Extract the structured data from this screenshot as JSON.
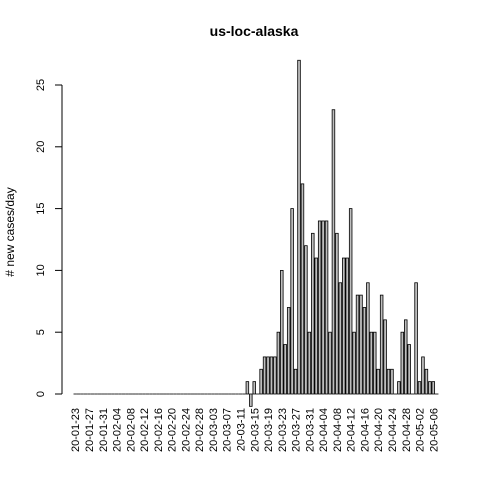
{
  "chart_data": {
    "type": "bar",
    "title": "us-loc-alaska",
    "xlabel": "",
    "ylabel": "# new cases/day",
    "ylim": [
      0,
      27
    ],
    "y_ticks": [
      0,
      5,
      10,
      15,
      20,
      25
    ],
    "grid": false,
    "legend": "none",
    "bar_fill": "#bebebe",
    "bar_stroke": "#000000",
    "x_tick_labels": [
      "20-01-23",
      "20-01-27",
      "20-01-31",
      "20-02-04",
      "20-02-08",
      "20-02-12",
      "20-02-16",
      "20-02-20",
      "20-02-24",
      "20-02-28",
      "20-03-03",
      "20-03-07",
      "20-03-11",
      "20-03-15",
      "20-03-19",
      "20-03-23",
      "20-03-27",
      "20-03-31",
      "20-04-04",
      "20-04-08",
      "20-04-12",
      "20-04-16",
      "20-04-20",
      "20-04-24",
      "20-04-28",
      "20-05-02",
      "20-05-06"
    ],
    "categories": [
      "20-01-23",
      "20-01-24",
      "20-01-25",
      "20-01-26",
      "20-01-27",
      "20-01-28",
      "20-01-29",
      "20-01-30",
      "20-01-31",
      "20-02-01",
      "20-02-02",
      "20-02-03",
      "20-02-04",
      "20-02-05",
      "20-02-06",
      "20-02-07",
      "20-02-08",
      "20-02-09",
      "20-02-10",
      "20-02-11",
      "20-02-12",
      "20-02-13",
      "20-02-14",
      "20-02-15",
      "20-02-16",
      "20-02-17",
      "20-02-18",
      "20-02-19",
      "20-02-20",
      "20-02-21",
      "20-02-22",
      "20-02-23",
      "20-02-24",
      "20-02-25",
      "20-02-26",
      "20-02-27",
      "20-02-28",
      "20-02-29",
      "20-03-01",
      "20-03-02",
      "20-03-03",
      "20-03-04",
      "20-03-05",
      "20-03-06",
      "20-03-07",
      "20-03-08",
      "20-03-09",
      "20-03-10",
      "20-03-11",
      "20-03-12",
      "20-03-13",
      "20-03-14",
      "20-03-15",
      "20-03-16",
      "20-03-17",
      "20-03-18",
      "20-03-19",
      "20-03-20",
      "20-03-21",
      "20-03-22",
      "20-03-23",
      "20-03-24",
      "20-03-25",
      "20-03-26",
      "20-03-27",
      "20-03-28",
      "20-03-29",
      "20-03-30",
      "20-03-31",
      "20-04-01",
      "20-04-02",
      "20-04-03",
      "20-04-04",
      "20-04-05",
      "20-04-06",
      "20-04-07",
      "20-04-08",
      "20-04-09",
      "20-04-10",
      "20-04-11",
      "20-04-12",
      "20-04-13",
      "20-04-14",
      "20-04-15",
      "20-04-16",
      "20-04-17",
      "20-04-18",
      "20-04-19",
      "20-04-20",
      "20-04-21",
      "20-04-22",
      "20-04-23",
      "20-04-24",
      "20-04-25",
      "20-04-26",
      "20-04-27",
      "20-04-28",
      "20-04-29",
      "20-04-30",
      "20-05-01",
      "20-05-02",
      "20-05-03",
      "20-05-04",
      "20-05-05",
      "20-05-06",
      "20-05-07"
    ],
    "values": [
      0,
      0,
      0,
      0,
      0,
      0,
      0,
      0,
      0,
      0,
      0,
      0,
      0,
      0,
      0,
      0,
      0,
      0,
      0,
      0,
      0,
      0,
      0,
      0,
      0,
      0,
      0,
      0,
      0,
      0,
      0,
      0,
      0,
      0,
      0,
      0,
      0,
      0,
      0,
      0,
      0,
      0,
      0,
      0,
      0,
      0,
      0,
      0,
      0,
      0,
      1,
      -1,
      1,
      0,
      2,
      3,
      3,
      3,
      3,
      5,
      10,
      4,
      7,
      15,
      2,
      27,
      17,
      12,
      5,
      13,
      11,
      14,
      14,
      14,
      5,
      23,
      13,
      9,
      11,
      11,
      15,
      5,
      8,
      8,
      7,
      9,
      5,
      5,
      2,
      8,
      6,
      2,
      2,
      0,
      1,
      5,
      6,
      4,
      0,
      9,
      1,
      3,
      2,
      1,
      1,
      0
    ]
  }
}
